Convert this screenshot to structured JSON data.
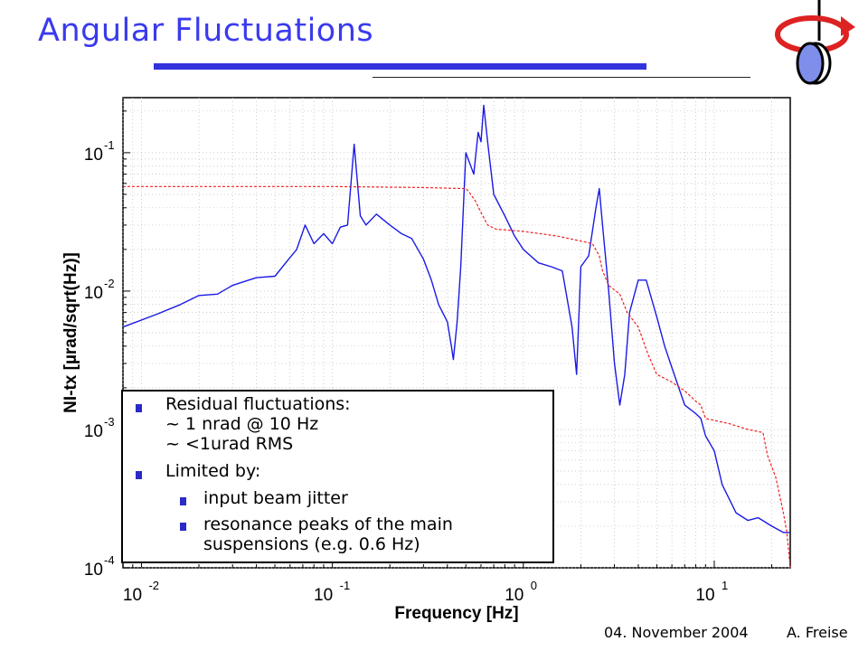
{
  "slide": {
    "title": "Angular Fluctuations",
    "footer_date": "04. November 2004",
    "footer_author": "A. Freise"
  },
  "callout": {
    "bullets": [
      {
        "line1": "Residual fluctuations:",
        "line2": "~ 1 nrad @ 10 Hz",
        "line3": "~ <1urad RMS"
      },
      {
        "line1": "Limited by:"
      }
    ],
    "sub_bullets": [
      {
        "line1": "input beam jitter"
      },
      {
        "line1": "resonance peaks of the main",
        "line2": "suspensions (e.g. 0.6 Hz)"
      }
    ]
  },
  "colors": {
    "title": "#3a3aee",
    "spectrum": "#1a1ae6",
    "rms": "#ee2222",
    "grid": "#bbbbbb"
  },
  "chart_data": {
    "type": "line",
    "xlabel": "Frequency [Hz]",
    "ylabel": "NI-tx [µrad/sqrt(Hz)]",
    "xscale": "log",
    "yscale": "log",
    "xlim": [
      0.008,
      25
    ],
    "ylim": [
      0.0001,
      0.25
    ],
    "grid": true,
    "x_ticks": [
      {
        "base": "10",
        "exp": "-2",
        "value": 0.01
      },
      {
        "base": "10",
        "exp": "-1",
        "value": 0.1
      },
      {
        "base": "10",
        "exp": "0",
        "value": 1
      },
      {
        "base": "10",
        "exp": "1",
        "value": 10
      }
    ],
    "y_ticks": [
      {
        "base": "10",
        "exp": "-1",
        "value": 0.1
      },
      {
        "base": "10",
        "exp": "-2",
        "value": 0.01
      },
      {
        "base": "10",
        "exp": "-3",
        "value": 0.001
      },
      {
        "base": "10",
        "exp": "-4",
        "value": 0.0001
      }
    ],
    "series": [
      {
        "key": "spectrum",
        "values": [
          [
            0.008,
            0.0055
          ],
          [
            0.012,
            0.0068
          ],
          [
            0.016,
            0.008
          ],
          [
            0.02,
            0.0093
          ],
          [
            0.025,
            0.0095
          ],
          [
            0.03,
            0.011
          ],
          [
            0.04,
            0.0125
          ],
          [
            0.05,
            0.0128
          ],
          [
            0.058,
            0.0165
          ],
          [
            0.065,
            0.02
          ],
          [
            0.072,
            0.03
          ],
          [
            0.08,
            0.022
          ],
          [
            0.09,
            0.026
          ],
          [
            0.1,
            0.022
          ],
          [
            0.11,
            0.029
          ],
          [
            0.12,
            0.03
          ],
          [
            0.13,
            0.115
          ],
          [
            0.14,
            0.035
          ],
          [
            0.15,
            0.03
          ],
          [
            0.17,
            0.036
          ],
          [
            0.2,
            0.03
          ],
          [
            0.23,
            0.026
          ],
          [
            0.26,
            0.024
          ],
          [
            0.3,
            0.017
          ],
          [
            0.33,
            0.012
          ],
          [
            0.36,
            0.008
          ],
          [
            0.4,
            0.006
          ],
          [
            0.42,
            0.004
          ],
          [
            0.43,
            0.0032
          ],
          [
            0.45,
            0.006
          ],
          [
            0.47,
            0.015
          ],
          [
            0.5,
            0.1
          ],
          [
            0.55,
            0.07
          ],
          [
            0.58,
            0.14
          ],
          [
            0.6,
            0.12
          ],
          [
            0.62,
            0.22
          ],
          [
            0.65,
            0.12
          ],
          [
            0.7,
            0.05
          ],
          [
            0.8,
            0.035
          ],
          [
            0.9,
            0.025
          ],
          [
            1.0,
            0.02
          ],
          [
            1.2,
            0.016
          ],
          [
            1.4,
            0.015
          ],
          [
            1.6,
            0.014
          ],
          [
            1.8,
            0.0055
          ],
          [
            1.9,
            0.0025
          ],
          [
            2.0,
            0.015
          ],
          [
            2.2,
            0.018
          ],
          [
            2.4,
            0.04
          ],
          [
            2.5,
            0.055
          ],
          [
            2.6,
            0.03
          ],
          [
            2.8,
            0.01
          ],
          [
            3.0,
            0.003
          ],
          [
            3.2,
            0.0015
          ],
          [
            3.4,
            0.0025
          ],
          [
            3.6,
            0.007
          ],
          [
            4.0,
            0.012
          ],
          [
            4.4,
            0.012
          ],
          [
            5.0,
            0.0065
          ],
          [
            5.5,
            0.004
          ],
          [
            6.0,
            0.0028
          ],
          [
            7.0,
            0.0015
          ],
          [
            8.0,
            0.0013
          ],
          [
            8.5,
            0.0012
          ],
          [
            9.0,
            0.0009
          ],
          [
            10.0,
            0.0007
          ],
          [
            11.0,
            0.0004
          ],
          [
            13.0,
            0.00025
          ],
          [
            15.0,
            0.00022
          ],
          [
            17.0,
            0.00023
          ],
          [
            20.0,
            0.0002
          ],
          [
            23.0,
            0.00018
          ],
          [
            25.0,
            0.00018
          ]
        ]
      },
      {
        "key": "rms",
        "values": [
          [
            0.008,
            0.057
          ],
          [
            0.1,
            0.057
          ],
          [
            0.3,
            0.056
          ],
          [
            0.5,
            0.055
          ],
          [
            0.52,
            0.052
          ],
          [
            0.56,
            0.045
          ],
          [
            0.6,
            0.037
          ],
          [
            0.65,
            0.03
          ],
          [
            0.72,
            0.028
          ],
          [
            1.0,
            0.027
          ],
          [
            1.5,
            0.025
          ],
          [
            2.0,
            0.023
          ],
          [
            2.3,
            0.022
          ],
          [
            2.5,
            0.018
          ],
          [
            2.6,
            0.014
          ],
          [
            2.8,
            0.011
          ],
          [
            3.2,
            0.0095
          ],
          [
            3.5,
            0.007
          ],
          [
            4.0,
            0.0055
          ],
          [
            4.5,
            0.0035
          ],
          [
            5.0,
            0.0025
          ],
          [
            6.0,
            0.0022
          ],
          [
            7.0,
            0.0019
          ],
          [
            8.0,
            0.0016
          ],
          [
            8.5,
            0.0015
          ],
          [
            9.0,
            0.0012
          ],
          [
            12.0,
            0.0011
          ],
          [
            15.0,
            0.001
          ],
          [
            18.0,
            0.00095
          ],
          [
            19.0,
            0.00065
          ],
          [
            21.0,
            0.00045
          ],
          [
            23.0,
            0.00025
          ],
          [
            24.0,
            0.00018
          ],
          [
            25.0,
            0.0001
          ]
        ]
      }
    ]
  }
}
